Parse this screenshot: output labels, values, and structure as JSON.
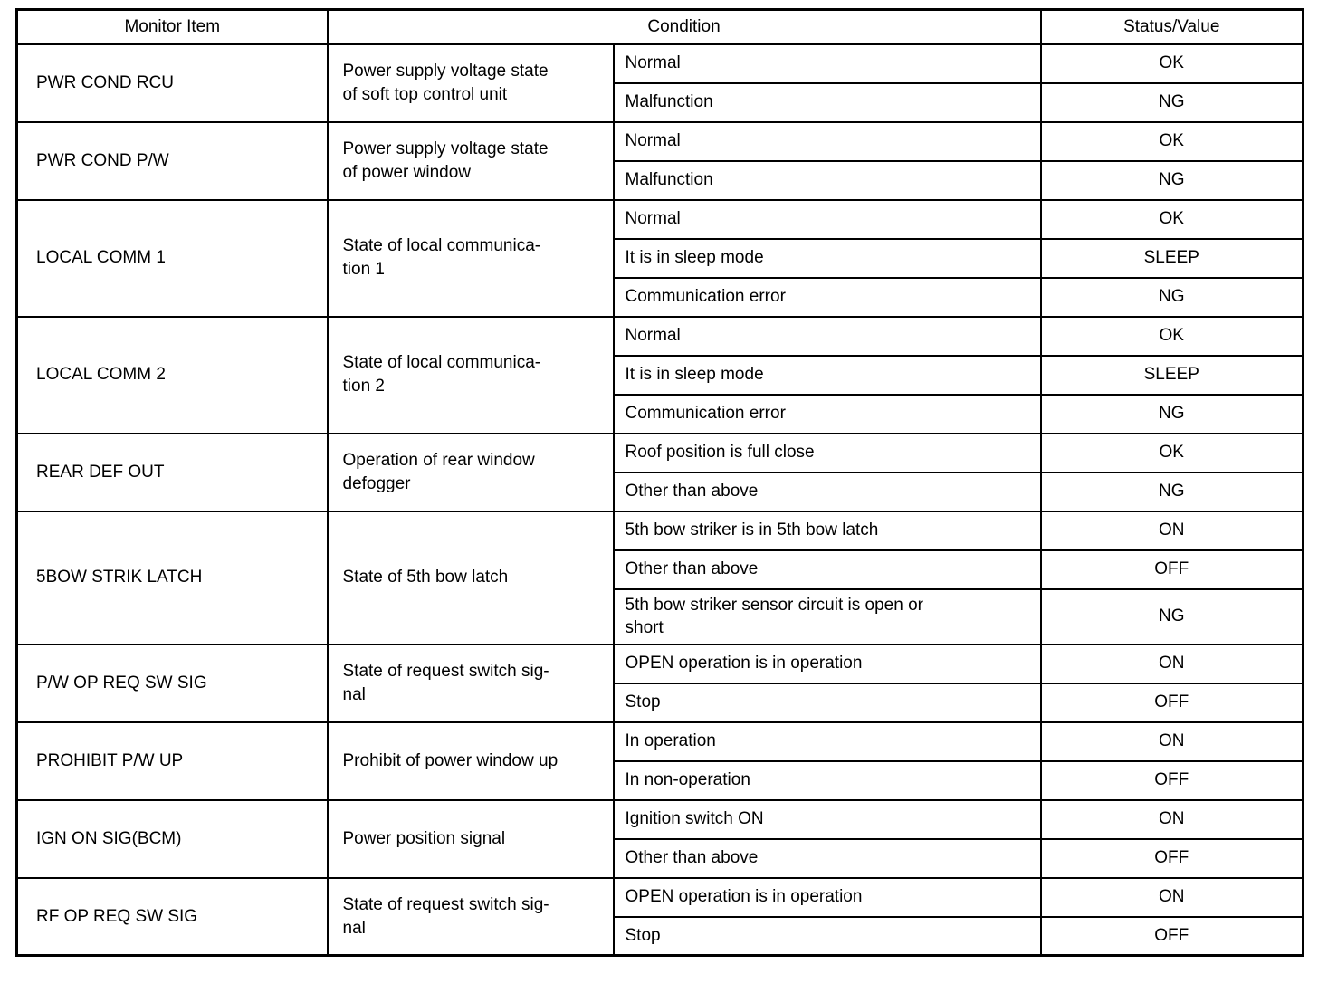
{
  "colors": {
    "border": "#000000",
    "text": "#000000",
    "background": "#ffffff"
  },
  "table": {
    "headers": [
      "Monitor Item",
      "Condition",
      "Status/Value"
    ],
    "rows": [
      {
        "item": "PWR COND RCU",
        "description": "Power supply voltage state\nof soft top control unit",
        "conditions": [
          {
            "condition": "Normal",
            "status": "OK"
          },
          {
            "condition": "Malfunction",
            "status": "NG"
          }
        ]
      },
      {
        "item": "PWR COND P/W",
        "description": "Power supply voltage state\nof power window",
        "conditions": [
          {
            "condition": "Normal",
            "status": "OK"
          },
          {
            "condition": "Malfunction",
            "status": "NG"
          }
        ]
      },
      {
        "item": "LOCAL COMM 1",
        "description": "State of local communica-\ntion 1",
        "conditions": [
          {
            "condition": "Normal",
            "status": "OK"
          },
          {
            "condition": "It is in sleep mode",
            "status": "SLEEP"
          },
          {
            "condition": "Communication error",
            "status": "NG"
          }
        ]
      },
      {
        "item": "LOCAL COMM 2",
        "description": "State of local communica-\ntion 2",
        "conditions": [
          {
            "condition": "Normal",
            "status": "OK"
          },
          {
            "condition": "It is in sleep mode",
            "status": "SLEEP"
          },
          {
            "condition": "Communication error",
            "status": "NG"
          }
        ]
      },
      {
        "item": "REAR DEF OUT",
        "description": "Operation of rear window\ndefogger",
        "conditions": [
          {
            "condition": "Roof position is full close",
            "status": "OK"
          },
          {
            "condition": "Other than above",
            "status": "NG"
          }
        ]
      },
      {
        "item": "5BOW STRIK LATCH",
        "description": "State of 5th bow latch",
        "conditions": [
          {
            "condition": "5th bow striker is in 5th bow latch",
            "status": "ON"
          },
          {
            "condition": "Other than above",
            "status": "OFF"
          },
          {
            "condition": "5th bow striker sensor circuit is open or\nshort",
            "status": "NG"
          }
        ]
      },
      {
        "item": "P/W OP REQ SW SIG",
        "description": "State of request switch sig-\nnal",
        "conditions": [
          {
            "condition": "OPEN operation is in operation",
            "status": "ON"
          },
          {
            "condition": "Stop",
            "status": "OFF"
          }
        ]
      },
      {
        "item": "PROHIBIT P/W UP",
        "description": "Prohibit of power window up",
        "conditions": [
          {
            "condition": "In operation",
            "status": "ON"
          },
          {
            "condition": "In non-operation",
            "status": "OFF"
          }
        ]
      },
      {
        "item": "IGN ON SIG(BCM)",
        "description": "Power position signal",
        "conditions": [
          {
            "condition": "Ignition switch ON",
            "status": "ON"
          },
          {
            "condition": "Other than above",
            "status": "OFF"
          }
        ]
      },
      {
        "item": "RF OP REQ SW SIG",
        "description": "State of request switch sig-\nnal",
        "conditions": [
          {
            "condition": "OPEN operation is in operation",
            "status": "ON"
          },
          {
            "condition": "Stop",
            "status": "OFF"
          }
        ]
      }
    ]
  }
}
